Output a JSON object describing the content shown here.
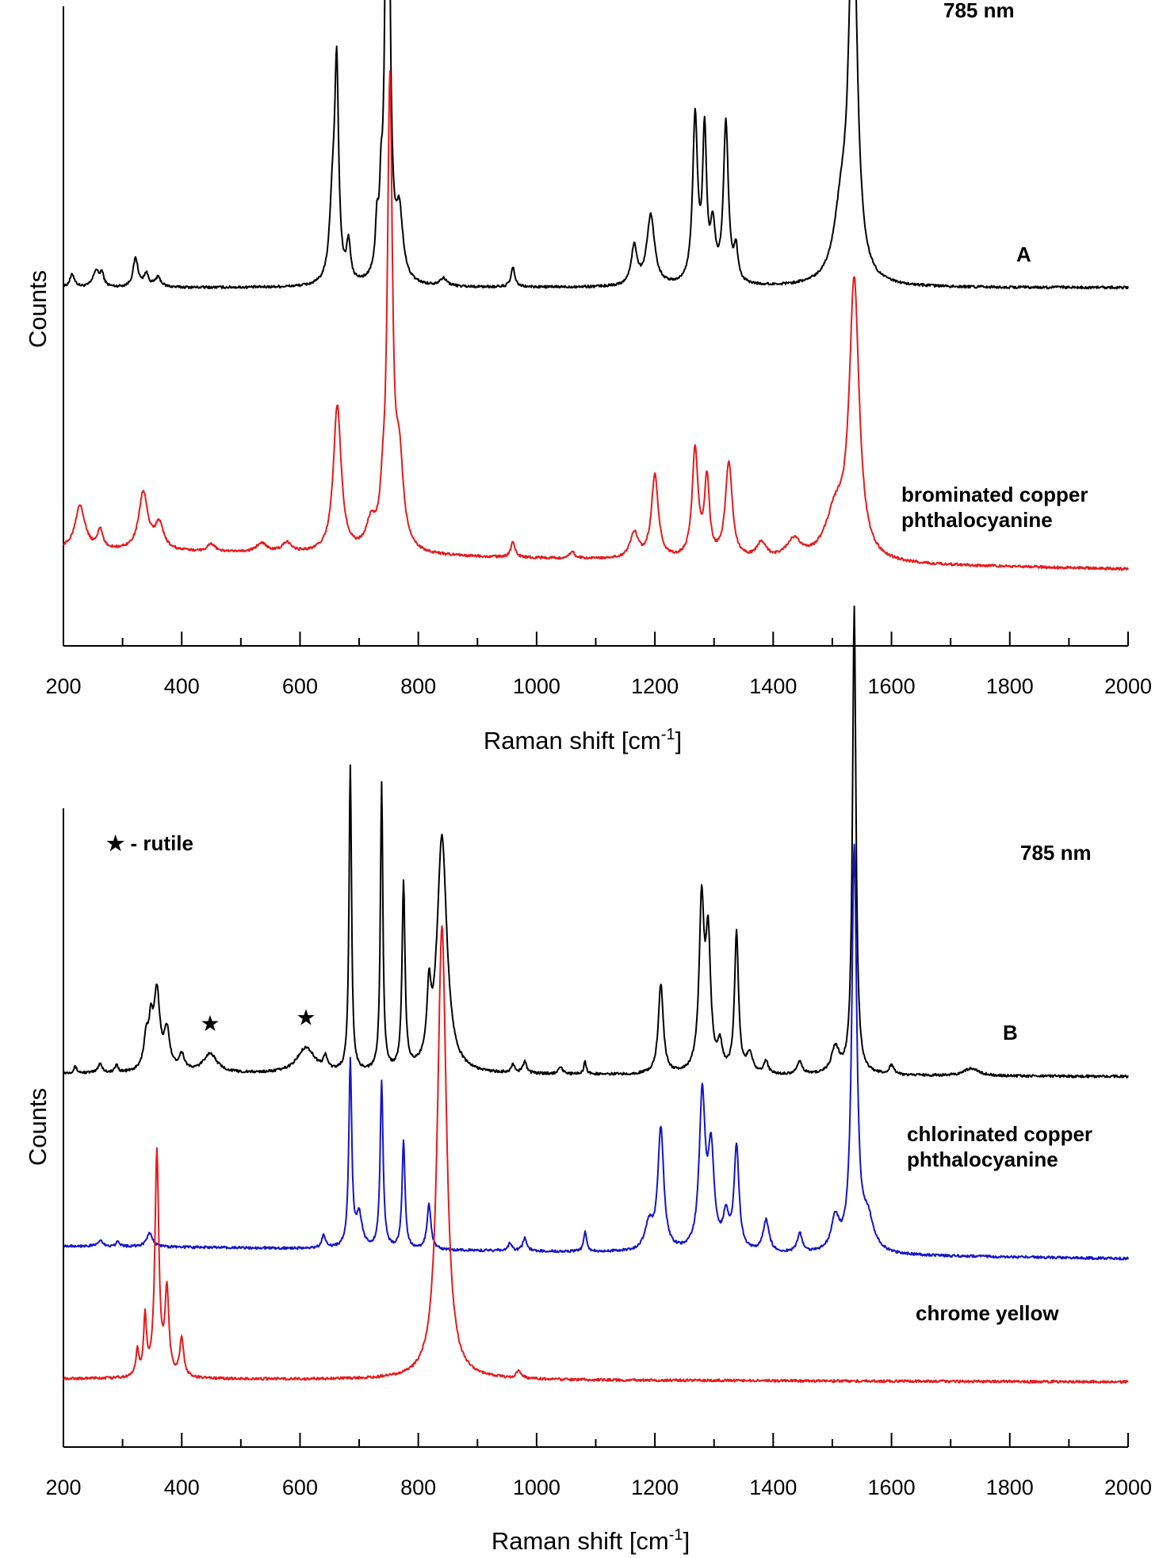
{
  "chart_data": [
    {
      "type": "line",
      "panel_label": "A",
      "annotation": "785 nm",
      "xlabel": "Raman shift [cm",
      "xlabel_sup": "-1",
      "xlabel_end": "]",
      "ylabel": "Counts",
      "xlim": [
        200,
        2000
      ],
      "ylim": [
        0,
        1
      ],
      "x_ticks": [
        "200",
        "400",
        "600",
        "800",
        "1000",
        "1200",
        "1400",
        "1600",
        "1800",
        "2000"
      ],
      "y_tick_labels": false,
      "grid": false,
      "legend": "none",
      "series": [
        {
          "name": "",
          "color": "#000000",
          "offset": 0.56,
          "baseline_start": 0.0,
          "baseline_end": 0.0,
          "peaks": [
            [
              215,
              0.02,
              5
            ],
            [
              255,
              0.025,
              6
            ],
            [
              265,
              0.02,
              4
            ],
            [
              322,
              0.045,
              5
            ],
            [
              340,
              0.02,
              5
            ],
            [
              360,
              0.015,
              6
            ],
            [
              655,
              0.12,
              6
            ],
            [
              662,
              0.32,
              4
            ],
            [
              682,
              0.06,
              4
            ],
            [
              730,
              0.07,
              3
            ],
            [
              737,
              0.09,
              3
            ],
            [
              748,
              1.0,
              4
            ],
            [
              768,
              0.1,
              7
            ],
            [
              842,
              0.012,
              8
            ],
            [
              960,
              0.03,
              4
            ],
            [
              1165,
              0.06,
              6
            ],
            [
              1193,
              0.11,
              8
            ],
            [
              1268,
              0.26,
              5
            ],
            [
              1284,
              0.23,
              4
            ],
            [
              1298,
              0.08,
              5
            ],
            [
              1320,
              0.25,
              5
            ],
            [
              1337,
              0.05,
              4
            ],
            [
              1515,
              0.1,
              15
            ],
            [
              1535,
              0.62,
              8
            ]
          ],
          "x": [
            200,
            255,
            322,
            662,
            682,
            748,
            768,
            960,
            1193,
            1268,
            1284,
            1320,
            1535,
            1850,
            2000
          ],
          "y": [
            0.56,
            0.585,
            0.605,
            0.88,
            0.62,
            1.56,
            0.67,
            0.59,
            0.67,
            0.82,
            0.79,
            0.81,
            1.18,
            0.57,
            0.56
          ]
        },
        {
          "name": "brominated copper phthalocyanine",
          "color": "#e8191b",
          "offset": 0.13,
          "baseline_start": 0.02,
          "baseline_end": -0.01,
          "peaks": [
            [
              228,
              0.07,
              10
            ],
            [
              262,
              0.03,
              5
            ],
            [
              335,
              0.09,
              9
            ],
            [
              362,
              0.04,
              9
            ],
            [
              450,
              0.012,
              8
            ],
            [
              535,
              0.015,
              10
            ],
            [
              578,
              0.015,
              10
            ],
            [
              663,
              0.23,
              8
            ],
            [
              720,
              0.04,
              10
            ],
            [
              740,
              0.05,
              5
            ],
            [
              752,
              0.72,
              5
            ],
            [
              768,
              0.13,
              8
            ],
            [
              960,
              0.025,
              4
            ],
            [
              1060,
              0.012,
              4
            ],
            [
              1165,
              0.04,
              8
            ],
            [
              1200,
              0.13,
              7
            ],
            [
              1268,
              0.17,
              6
            ],
            [
              1288,
              0.12,
              5
            ],
            [
              1325,
              0.15,
              7
            ],
            [
              1380,
              0.025,
              10
            ],
            [
              1435,
              0.03,
              15
            ],
            [
              1505,
              0.07,
              20
            ],
            [
              1537,
              0.43,
              10
            ]
          ],
          "x": [
            200,
            228,
            335,
            663,
            752,
            768,
            960,
            1200,
            1268,
            1288,
            1325,
            1537,
            2000
          ],
          "y": [
            0.15,
            0.22,
            0.24,
            0.38,
            0.85,
            0.28,
            0.17,
            0.28,
            0.31,
            0.27,
            0.29,
            0.56,
            0.12
          ]
        }
      ],
      "labels": [
        "A",
        "brominated copper",
        "phthalocyanine"
      ]
    },
    {
      "type": "line",
      "panel_label": "B",
      "annotation": "785 nm",
      "legend_note": "★ - rutile",
      "rutile_markers_x": [
        448,
        610
      ],
      "xlabel": "Raman shift [cm",
      "xlabel_sup": "-1",
      "xlabel_end": "]",
      "ylabel": "Counts",
      "xlim": [
        200,
        2000
      ],
      "ylim": [
        0,
        1
      ],
      "x_ticks": [
        "200",
        "400",
        "600",
        "800",
        "1000",
        "1200",
        "1400",
        "1600",
        "1800",
        "2000"
      ],
      "y_tick_labels": false,
      "grid": false,
      "legend": "none",
      "series": [
        {
          "name": "",
          "color": "#000000",
          "offset": 0.585,
          "baseline_start": 0.0,
          "baseline_end": -0.005,
          "peaks": [
            [
              220,
              0.01,
              3
            ],
            [
              262,
              0.015,
              4
            ],
            [
              290,
              0.012,
              3
            ],
            [
              340,
              0.05,
              5
            ],
            [
              348,
              0.06,
              4
            ],
            [
              358,
              0.12,
              6
            ],
            [
              375,
              0.06,
              6
            ],
            [
              400,
              0.025,
              6
            ],
            [
              448,
              0.03,
              14
            ],
            [
              610,
              0.04,
              18
            ],
            [
              643,
              0.02,
              4
            ],
            [
              685,
              0.48,
              2.5
            ],
            [
              738,
              0.45,
              2.5
            ],
            [
              775,
              0.29,
              3
            ],
            [
              818,
              0.1,
              4
            ],
            [
              840,
              0.37,
              10
            ],
            [
              960,
              0.012,
              4
            ],
            [
              980,
              0.018,
              4
            ],
            [
              1040,
              0.012,
              4
            ],
            [
              1082,
              0.02,
              2.5
            ],
            [
              1210,
              0.14,
              5
            ],
            [
              1279,
              0.26,
              5
            ],
            [
              1290,
              0.2,
              5
            ],
            [
              1310,
              0.04,
              5
            ],
            [
              1338,
              0.22,
              4
            ],
            [
              1360,
              0.03,
              6
            ],
            [
              1388,
              0.02,
              4
            ],
            [
              1445,
              0.02,
              5
            ],
            [
              1505,
              0.04,
              8
            ],
            [
              1537,
              0.73,
              3.5
            ],
            [
              1600,
              0.015,
              5
            ],
            [
              1735,
              0.012,
              15
            ]
          ],
          "x": [
            200,
            358,
            448,
            610,
            685,
            738,
            775,
            840,
            1210,
            1279,
            1338,
            1537,
            2000
          ],
          "y": [
            0.585,
            0.7,
            0.62,
            0.63,
            1.07,
            1.03,
            0.87,
            0.96,
            0.73,
            0.85,
            0.81,
            1.32,
            0.58
          ]
        },
        {
          "name": "chlorinated copper phthalocyanine",
          "color": "#1414c8",
          "offset": 0.315,
          "baseline_start": 0.0,
          "baseline_end": -0.02,
          "peaks": [
            [
              262,
              0.01,
              4
            ],
            [
              292,
              0.01,
              3
            ],
            [
              346,
              0.022,
              6
            ],
            [
              640,
              0.02,
              4
            ],
            [
              685,
              0.29,
              3
            ],
            [
              700,
              0.05,
              6
            ],
            [
              738,
              0.26,
              3
            ],
            [
              775,
              0.17,
              3
            ],
            [
              818,
              0.07,
              4
            ],
            [
              955,
              0.012,
              4
            ],
            [
              980,
              0.02,
              4
            ],
            [
              1082,
              0.03,
              3
            ],
            [
              1190,
              0.04,
              8
            ],
            [
              1210,
              0.19,
              6
            ],
            [
              1280,
              0.24,
              6
            ],
            [
              1295,
              0.15,
              6
            ],
            [
              1320,
              0.05,
              6
            ],
            [
              1338,
              0.16,
              5
            ],
            [
              1388,
              0.05,
              6
            ],
            [
              1445,
              0.03,
              5
            ],
            [
              1505,
              0.05,
              8
            ],
            [
              1537,
              0.63,
              5
            ],
            [
              1560,
              0.05,
              12
            ]
          ],
          "x": [
            200,
            346,
            685,
            738,
            775,
            1082,
            1210,
            1280,
            1338,
            1537,
            2000
          ],
          "y": [
            0.315,
            0.34,
            0.6,
            0.57,
            0.48,
            0.34,
            0.51,
            0.56,
            0.47,
            0.94,
            0.295
          ]
        },
        {
          "name": "chrome yellow",
          "color": "#e8191b",
          "offset": 0.107,
          "baseline_start": 0.0,
          "baseline_end": -0.005,
          "peaks": [
            [
              325,
              0.04,
              3
            ],
            [
              338,
              0.09,
              3
            ],
            [
              358,
              0.35,
              4
            ],
            [
              375,
              0.13,
              4
            ],
            [
              400,
              0.06,
              4
            ],
            [
              840,
              0.71,
              9
            ],
            [
              970,
              0.012,
              5
            ]
          ],
          "x": [
            200,
            338,
            358,
            375,
            400,
            840,
            970,
            2000
          ],
          "y": [
            0.107,
            0.2,
            0.46,
            0.24,
            0.17,
            0.82,
            0.12,
            0.102
          ]
        }
      ],
      "labels": [
        "B",
        "chlorinated copper",
        "phthalocyanine",
        "chrome yellow"
      ]
    }
  ]
}
